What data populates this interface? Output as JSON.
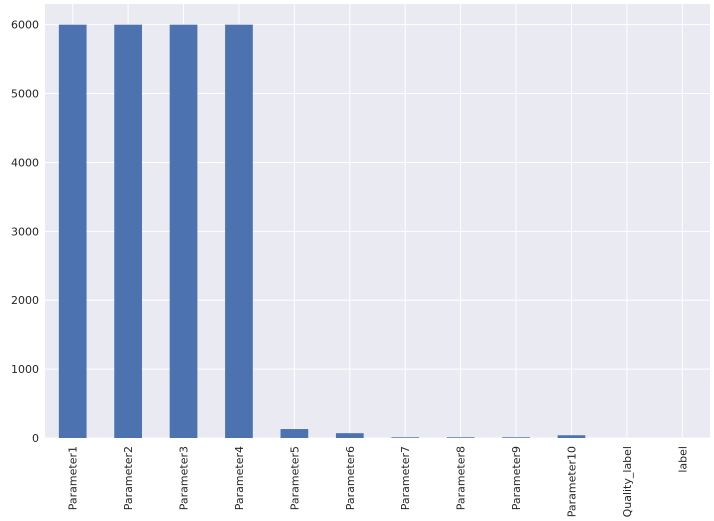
{
  "chart_data": {
    "type": "bar",
    "categories": [
      "Parameter1",
      "Parameter2",
      "Parameter3",
      "Parameter4",
      "Parameter5",
      "Parameter6",
      "Parameter7",
      "Parameter8",
      "Parameter9",
      "Parameter10",
      "Quality_label",
      "label"
    ],
    "values": [
      6000,
      6000,
      6000,
      6000,
      130,
      70,
      10,
      10,
      10,
      40,
      0,
      0
    ],
    "title": "",
    "xlabel": "",
    "ylabel": "",
    "ylim": [
      0,
      6300
    ],
    "yticks": [
      0,
      1000,
      2000,
      3000,
      4000,
      5000,
      6000
    ],
    "grid": true,
    "colors": {
      "bar": "#4c72b0",
      "background": "#eaeaf2",
      "grid": "#ffffff"
    }
  }
}
